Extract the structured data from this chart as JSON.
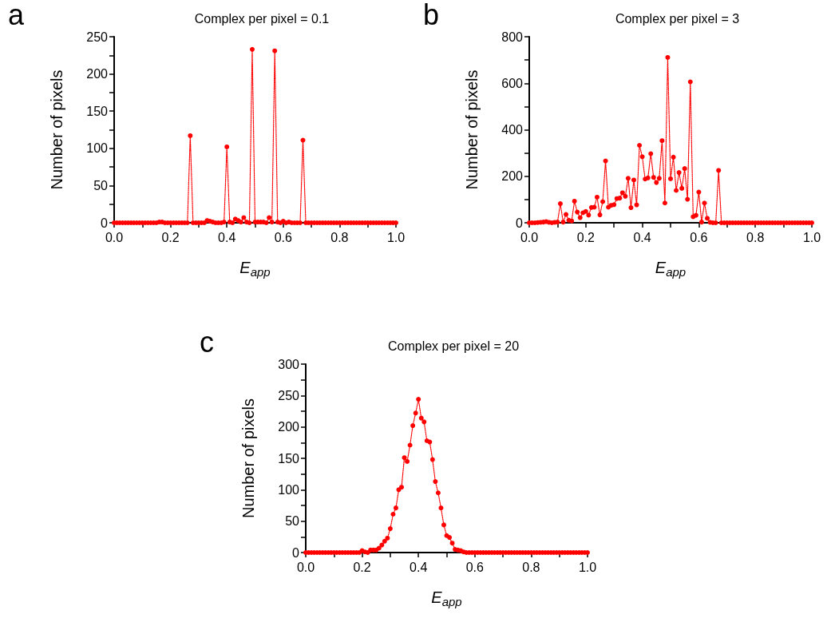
{
  "chart_data": [
    {
      "type": "line",
      "title": "Complex per pixel = 0.1",
      "annotations": [
        "a"
      ],
      "xlabel": "E$_{app}$",
      "ylabel": "Number of pixels",
      "marker": "circle",
      "line_style": "dotted",
      "x": [
        0,
        0.01,
        0.02,
        0.03,
        0.04,
        0.05,
        0.06,
        0.07,
        0.08,
        0.09,
        0.1,
        0.11,
        0.12,
        0.13,
        0.14,
        0.15,
        0.16,
        0.17,
        0.18,
        0.19,
        0.2,
        0.21,
        0.22,
        0.23,
        0.24,
        0.25,
        0.26,
        0.27,
        0.28,
        0.29,
        0.3,
        0.31,
        0.32,
        0.33,
        0.34,
        0.35,
        0.36,
        0.37,
        0.38,
        0.39,
        0.4,
        0.41,
        0.42,
        0.43,
        0.44,
        0.45,
        0.46,
        0.47,
        0.48,
        0.49,
        0.5,
        0.51,
        0.52,
        0.53,
        0.54,
        0.55,
        0.56,
        0.57,
        0.58,
        0.59,
        0.6,
        0.61,
        0.62,
        0.63,
        0.64,
        0.65,
        0.66,
        0.67,
        0.68,
        0.69,
        0.7,
        0.71,
        0.72,
        0.73,
        0.74,
        0.75,
        0.76,
        0.77,
        0.78,
        0.79,
        0.8,
        0.81,
        0.82,
        0.83,
        0.84,
        0.85,
        0.86,
        0.87,
        0.88,
        0.89,
        0.9,
        0.91,
        0.92,
        0.93,
        0.94,
        0.95,
        0.96,
        0.97,
        0.98,
        0.99,
        1
      ],
      "series": [
        {
          "color": "#ff0000",
          "values": [
            0,
            0,
            0,
            0,
            0,
            0,
            0,
            0,
            0,
            0,
            0,
            0,
            0,
            0,
            0,
            0,
            1,
            1,
            0,
            0,
            0,
            0,
            0,
            0,
            0,
            0,
            0,
            117,
            0,
            0,
            0,
            0,
            0,
            3,
            2,
            1,
            0,
            0,
            0,
            1,
            102,
            1,
            0,
            5,
            3,
            1,
            7,
            1,
            0,
            233,
            1,
            1,
            1,
            1,
            0,
            7,
            1,
            231,
            1,
            0,
            2,
            0,
            1,
            0,
            0,
            0,
            0,
            111,
            0,
            0,
            0,
            0,
            0,
            0,
            0,
            0,
            0,
            0,
            0,
            0,
            0,
            0,
            0,
            0,
            0,
            0,
            0,
            0,
            0,
            0,
            0,
            0,
            0,
            0,
            0,
            0,
            0,
            0,
            0,
            0,
            0
          ]
        }
      ],
      "xlim": [
        0,
        1
      ],
      "xticks": [
        {
          "value": 0,
          "label": "0.0"
        },
        {
          "value": 0.1,
          "label": null
        },
        {
          "value": 0.2,
          "label": "0.2"
        },
        {
          "value": 0.3,
          "label": null
        },
        {
          "value": 0.4,
          "label": "0.4"
        },
        {
          "value": 0.5,
          "label": null
        },
        {
          "value": 0.6,
          "label": "0.6"
        },
        {
          "value": 0.7,
          "label": null
        },
        {
          "value": 0.8,
          "label": "0.8"
        },
        {
          "value": 0.9,
          "label": null
        },
        {
          "value": 1,
          "label": "1.0"
        }
      ],
      "ylim": [
        0,
        250
      ],
      "yticks": [
        0,
        {
          "value": 25,
          "label": null
        },
        50,
        {
          "value": 75,
          "label": null
        },
        100,
        {
          "value": 125,
          "label": null
        },
        150,
        {
          "value": 175,
          "label": null
        },
        200,
        {
          "value": 225,
          "label": null
        },
        250
      ]
    },
    {
      "type": "line",
      "title": "Complex per pixel = 3",
      "annotations": [
        "b"
      ],
      "xlabel": "E$_{app}$",
      "ylabel": "Number of pixels",
      "marker": "circle",
      "line_style": "dotted",
      "x": [
        0,
        0.01,
        0.02,
        0.03,
        0.04,
        0.05,
        0.06,
        0.07,
        0.08,
        0.09,
        0.1,
        0.11,
        0.12,
        0.13,
        0.14,
        0.15,
        0.16,
        0.17,
        0.18,
        0.19,
        0.2,
        0.21,
        0.22,
        0.23,
        0.24,
        0.25,
        0.26,
        0.27,
        0.28,
        0.29,
        0.3,
        0.31,
        0.32,
        0.33,
        0.34,
        0.35,
        0.36,
        0.37,
        0.38,
        0.39,
        0.4,
        0.41,
        0.42,
        0.43,
        0.44,
        0.45,
        0.46,
        0.47,
        0.48,
        0.49,
        0.5,
        0.51,
        0.52,
        0.53,
        0.54,
        0.55,
        0.56,
        0.57,
        0.58,
        0.59,
        0.6,
        0.61,
        0.62,
        0.63,
        0.64,
        0.65,
        0.66,
        0.67,
        0.68,
        0.69,
        0.7,
        0.71,
        0.72,
        0.73,
        0.74,
        0.75,
        0.76,
        0.77,
        0.78,
        0.79,
        0.8,
        0.81,
        0.82,
        0.83,
        0.84,
        0.85,
        0.86,
        0.87,
        0.88,
        0.89,
        0.9,
        0.91,
        0.92,
        0.93,
        0.94,
        0.95,
        0.96,
        0.97,
        0.98,
        0.99,
        1
      ],
      "series": [
        {
          "color": "#ff0000",
          "values": [
            0,
            0,
            0,
            1,
            2,
            3,
            5,
            2,
            0,
            2,
            3,
            82,
            3,
            36,
            11,
            8,
            93,
            46,
            22,
            43,
            49,
            33,
            66,
            67,
            110,
            34,
            91,
            266,
            67,
            75,
            78,
            104,
            106,
            129,
            114,
            191,
            65,
            184,
            77,
            333,
            284,
            188,
            193,
            297,
            195,
            173,
            191,
            353,
            85,
            711,
            189,
            282,
            139,
            216,
            148,
            233,
            101,
            606,
            26,
            32,
            132,
            3,
            85,
            19,
            2,
            0,
            0,
            225,
            0,
            0,
            0,
            0,
            0,
            0,
            0,
            0,
            0,
            0,
            0,
            0,
            0,
            0,
            0,
            0,
            0,
            0,
            0,
            0,
            0,
            0,
            0,
            0,
            0,
            0,
            0,
            0,
            0,
            0,
            0,
            0,
            0
          ]
        }
      ],
      "xlim": [
        0,
        1
      ],
      "xticks": [
        {
          "value": 0,
          "label": "0.0"
        },
        {
          "value": 0.1,
          "label": null
        },
        {
          "value": 0.2,
          "label": "0.2"
        },
        {
          "value": 0.3,
          "label": null
        },
        {
          "value": 0.4,
          "label": "0.4"
        },
        {
          "value": 0.5,
          "label": null
        },
        {
          "value": 0.6,
          "label": "0.6"
        },
        {
          "value": 0.7,
          "label": null
        },
        {
          "value": 0.8,
          "label": "0.8"
        },
        {
          "value": 0.9,
          "label": null
        },
        {
          "value": 1,
          "label": "1.0"
        }
      ],
      "ylim": [
        0,
        800
      ],
      "yticks": [
        0,
        {
          "value": 100,
          "label": null
        },
        200,
        {
          "value": 300,
          "label": null
        },
        400,
        {
          "value": 500,
          "label": null
        },
        600,
        {
          "value": 700,
          "label": null
        },
        800
      ]
    },
    {
      "type": "line",
      "title": "Complex per pixel = 20",
      "annotations": [
        "c"
      ],
      "xlabel": "E$_{app}$",
      "ylabel": "Number of pixels",
      "marker": "circle",
      "line_style": "dotted",
      "x": [
        0,
        0.01,
        0.02,
        0.03,
        0.04,
        0.05,
        0.06,
        0.07,
        0.08,
        0.09,
        0.1,
        0.11,
        0.12,
        0.13,
        0.14,
        0.15,
        0.16,
        0.17,
        0.18,
        0.19,
        0.2,
        0.21,
        0.22,
        0.23,
        0.24,
        0.25,
        0.26,
        0.27,
        0.28,
        0.29,
        0.3,
        0.31,
        0.32,
        0.33,
        0.34,
        0.35,
        0.36,
        0.37,
        0.38,
        0.39,
        0.4,
        0.41,
        0.42,
        0.43,
        0.44,
        0.45,
        0.46,
        0.47,
        0.48,
        0.49,
        0.5,
        0.51,
        0.52,
        0.53,
        0.54,
        0.55,
        0.56,
        0.57,
        0.58,
        0.59,
        0.6,
        0.61,
        0.62,
        0.63,
        0.64,
        0.65,
        0.66,
        0.67,
        0.68,
        0.69,
        0.7,
        0.71,
        0.72,
        0.73,
        0.74,
        0.75,
        0.76,
        0.77,
        0.78,
        0.79,
        0.8,
        0.81,
        0.82,
        0.83,
        0.84,
        0.85,
        0.86,
        0.87,
        0.88,
        0.89,
        0.9,
        0.91,
        0.92,
        0.93,
        0.94,
        0.95,
        0.96,
        0.97,
        0.98,
        0.99,
        1
      ],
      "series": [
        {
          "color": "#ff0000",
          "values": [
            0,
            0,
            0,
            0,
            0,
            0,
            0,
            0,
            0,
            0,
            0,
            0,
            0,
            0,
            0,
            0,
            0,
            0,
            0,
            0,
            3,
            1,
            0,
            4,
            4,
            4,
            7,
            12,
            18,
            23,
            38,
            61,
            71,
            100,
            104,
            151,
            145,
            171,
            202,
            222,
            244,
            214,
            208,
            178,
            176,
            148,
            113,
            95,
            71,
            44,
            27,
            24,
            15,
            5,
            4,
            3,
            1,
            0,
            0,
            0,
            0,
            0,
            0,
            0,
            0,
            0,
            0,
            0,
            0,
            0,
            0,
            0,
            0,
            0,
            0,
            0,
            0,
            0,
            0,
            0,
            0,
            0,
            0,
            0,
            0,
            0,
            0,
            0,
            0,
            0,
            0,
            0,
            0,
            0,
            0,
            0,
            0,
            0,
            0,
            0,
            0
          ]
        }
      ],
      "xlim": [
        0,
        1
      ],
      "xticks": [
        {
          "value": 0,
          "label": "0.0"
        },
        {
          "value": 0.1,
          "label": null
        },
        {
          "value": 0.2,
          "label": "0.2"
        },
        {
          "value": 0.3,
          "label": null
        },
        {
          "value": 0.4,
          "label": "0.4"
        },
        {
          "value": 0.5,
          "label": null
        },
        {
          "value": 0.6,
          "label": "0.6"
        },
        {
          "value": 0.7,
          "label": null
        },
        {
          "value": 0.8,
          "label": "0.8"
        },
        {
          "value": 0.9,
          "label": null
        },
        {
          "value": 1,
          "label": "1.0"
        }
      ],
      "ylim": [
        0,
        300
      ],
      "yticks": [
        0,
        {
          "value": 25,
          "label": null
        },
        50,
        {
          "value": 75,
          "label": null
        },
        100,
        {
          "value": 125,
          "label": null
        },
        150,
        {
          "value": 175,
          "label": null
        },
        200,
        {
          "value": 225,
          "label": null
        },
        250,
        {
          "value": 275,
          "label": null
        },
        300
      ]
    }
  ]
}
